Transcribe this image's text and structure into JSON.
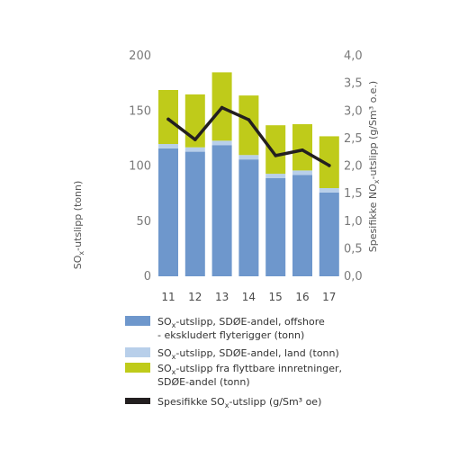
{
  "chart_data": {
    "type": "bar",
    "categories": [
      "11",
      "12",
      "13",
      "14",
      "15",
      "16",
      "17"
    ],
    "series": [
      {
        "name": "SOx-utslipp, SDØE-andel, offshore - ekskludert flyterigger (tonn)",
        "values": [
          116,
          113,
          119,
          106,
          89,
          92,
          76
        ],
        "color": "#6e97cc"
      },
      {
        "name": "SOx-utslipp, SDØE-andel, land (tonn)",
        "values": [
          4,
          4,
          4,
          4,
          4,
          4,
          4
        ],
        "color": "#b8cfea"
      },
      {
        "name": "SOx-utslipp fra flyttbare innretninger, SDØE-andel (tonn)",
        "values": [
          49,
          48,
          62,
          54,
          44,
          42,
          47
        ],
        "color": "#bfcb1a"
      },
      {
        "name": "Spesifikke SOx-utslipp (g/Sm³ oe)",
        "type": "line",
        "axis": "right",
        "values": [
          2.85,
          2.48,
          3.06,
          2.84,
          2.19,
          2.29,
          2.01
        ],
        "color": "#231f20"
      }
    ],
    "left_axis": {
      "label": "SO",
      "label_sub": "x",
      "label_rest": "-utslipp (tonn)",
      "ylim": [
        0,
        200
      ],
      "ticks": [
        "0",
        "50",
        "100",
        "150",
        "200"
      ]
    },
    "right_axis": {
      "label": "Spesifikke NO",
      "label_sub": "x",
      "label_rest": "-utslipp (g/Sm³ o.e.)",
      "ylim": [
        0,
        4.0
      ],
      "ticks": [
        "0,0",
        "0,5",
        "1,0",
        "1,5",
        "2,0",
        "2,5",
        "3,0",
        "3,5",
        "4,0"
      ]
    },
    "legend": {
      "placement": "bottom",
      "items": [
        {
          "pre": "SO",
          "sub": "x",
          "post": "-utslipp, SDØE-andel, offshore",
          "line2": "- ekskludert flyterigger (tonn)",
          "color": "#6e97cc",
          "kind": "box"
        },
        {
          "pre": "SO",
          "sub": "x",
          "post": "-utslipp, SDØE-andel, land (tonn)",
          "line2": "",
          "color": "#b8cfea",
          "kind": "box"
        },
        {
          "pre": "SO",
          "sub": "x",
          "post": "-utslipp fra flyttbare innretninger,",
          "line2": "SDØE-andel (tonn)",
          "color": "#bfcb1a",
          "kind": "box"
        },
        {
          "pre": "Spesifikke SO",
          "sub": "x",
          "post": "-utslipp (g/Sm³ oe)",
          "line2": "",
          "color": "#231f20",
          "kind": "line"
        }
      ]
    },
    "grid": false
  }
}
